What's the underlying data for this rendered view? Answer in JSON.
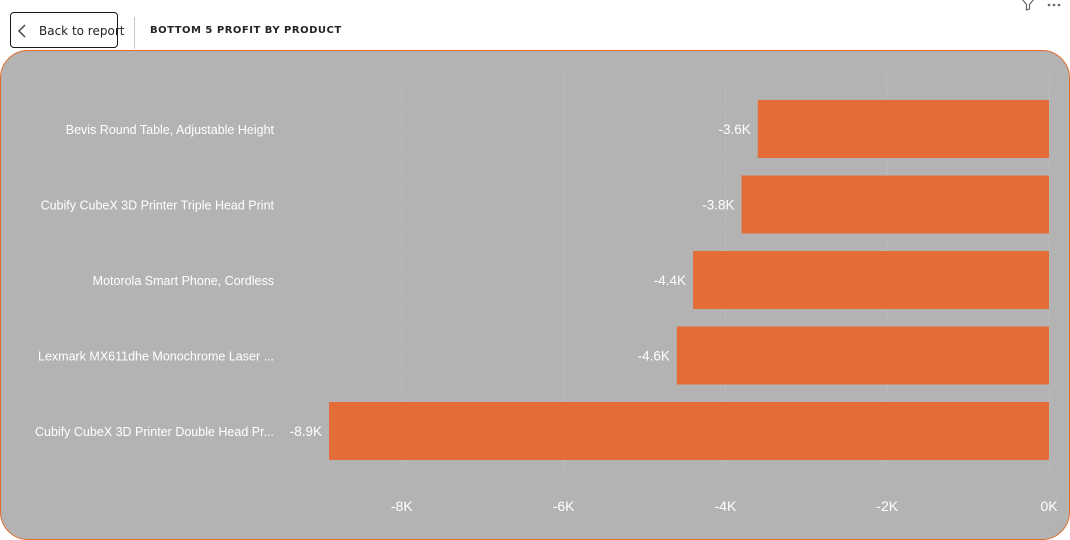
{
  "header": {
    "back_label": "Back to report",
    "title": "BOTTOM 5 PROFIT BY PRODUCT"
  },
  "icons": {
    "back": "chevron-left-icon",
    "filter": "filter-icon",
    "more": "more-options-icon"
  },
  "colors": {
    "bar": "#E46C38",
    "panel_bg": "#B3B3B3",
    "label": "#FFFFFF",
    "border": "#E06B2C"
  },
  "chart_data": {
    "type": "bar",
    "orientation": "horizontal",
    "title": "BOTTOM 5 PROFIT BY PRODUCT",
    "categories": [
      "Bevis Round Table, Adjustable Height",
      "Cubify CubeX 3D Printer Triple Head Print",
      "Motorola Smart Phone, Cordless",
      "Lexmark MX611dhe Monochrome Laser ...",
      "Cubify CubeX 3D Printer Double Head Pr..."
    ],
    "values": [
      -3.6,
      -3.8,
      -4.4,
      -4.6,
      -8.9
    ],
    "data_labels": [
      "-3.6K",
      "-3.8K",
      "-4.4K",
      "-4.6K",
      "-8.9K"
    ],
    "x_ticks": [
      -8,
      -6,
      -4,
      -2,
      0
    ],
    "x_tick_labels": [
      "-8K",
      "-6K",
      "-4K",
      "-2K",
      "0K"
    ],
    "xlim": [
      -8.9,
      0
    ],
    "grid": true
  }
}
